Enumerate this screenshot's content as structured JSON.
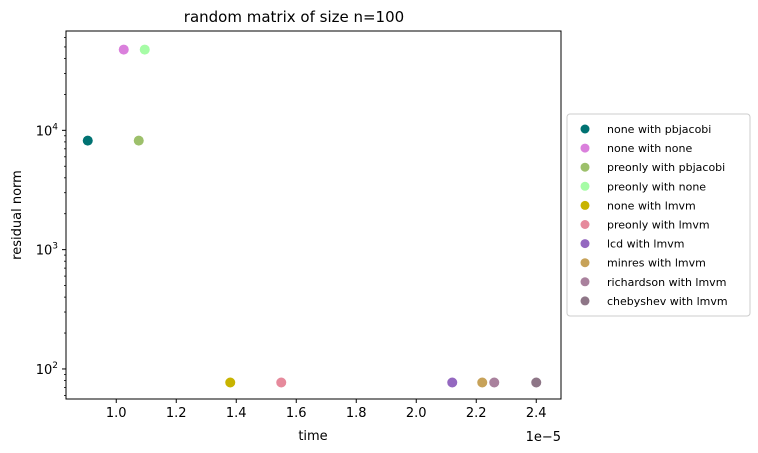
{
  "chart_data": {
    "type": "scatter",
    "title": "random matrix of size n=100",
    "xlabel": "time",
    "ylabel": "residual norm",
    "x_offset_label": "1e−5",
    "x_scale": "linear",
    "y_scale": "log",
    "xlim": [
      8.325e-06,
      2.4825e-05
    ],
    "ylim": [
      56,
      68000
    ],
    "x_tick_labels": [
      "1.0",
      "1.2",
      "1.4",
      "1.6",
      "1.8",
      "2.0",
      "2.2",
      "2.4"
    ],
    "x_ticks": [
      1e-05,
      1.2e-05,
      1.4e-05,
      1.6e-05,
      1.8e-05,
      2e-05,
      2.2e-05,
      2.4e-05
    ],
    "y_ticks": [
      100,
      1000,
      10000
    ],
    "y_tick_labels": [
      {
        "base": "10",
        "exp": "2"
      },
      {
        "base": "10",
        "exp": "3"
      },
      {
        "base": "10",
        "exp": "4"
      }
    ],
    "grid": false,
    "legend_placement": "right",
    "series": [
      {
        "name": "none with pbjacobi",
        "color": "#007272",
        "x": [
          9.05e-06
        ],
        "y": [
          8200
        ]
      },
      {
        "name": "none with none",
        "color": "#da80dc",
        "x": [
          1.025e-05
        ],
        "y": [
          47500
        ]
      },
      {
        "name": "preonly with pbjacobi",
        "color": "#9dc06b",
        "x": [
          1.075e-05
        ],
        "y": [
          8200
        ]
      },
      {
        "name": "preonly with none",
        "color": "#a6fca6",
        "x": [
          1.095e-05
        ],
        "y": [
          47500
        ]
      },
      {
        "name": "none with lmvm",
        "color": "#c8b400",
        "x": [
          1.38e-05
        ],
        "y": [
          77
        ]
      },
      {
        "name": "preonly with lmvm",
        "color": "#e68a9c",
        "x": [
          1.55e-05
        ],
        "y": [
          77
        ]
      },
      {
        "name": "lcd with lmvm",
        "color": "#9468c0",
        "x": [
          2.12e-05
        ],
        "y": [
          77
        ]
      },
      {
        "name": "minres with lmvm",
        "color": "#c7a259",
        "x": [
          2.22e-05
        ],
        "y": [
          77
        ]
      },
      {
        "name": "richardson with lmvm",
        "color": "#a9819d",
        "x": [
          2.26e-05
        ],
        "y": [
          77
        ]
      },
      {
        "name": "chebyshev with lmvm",
        "color": "#8e7687",
        "x": [
          2.4e-05
        ],
        "y": [
          77
        ]
      }
    ]
  }
}
